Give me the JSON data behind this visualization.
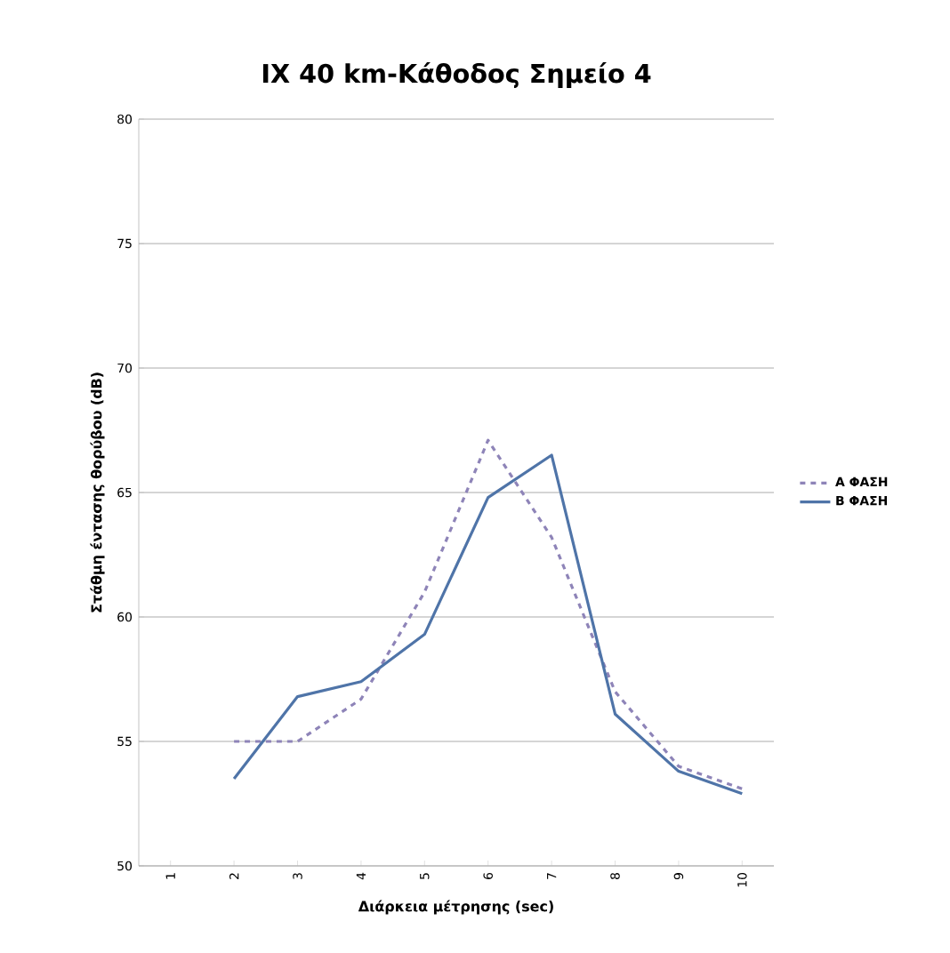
{
  "chart_data": {
    "type": "line",
    "title": "ΙΧ 40 km-Κάθοδος Σημείο 4",
    "xlabel": "Διάρκεια μέτρησης (sec)",
    "ylabel": "Στάθμη έντασης θορύβου (dB)",
    "categories": [
      "1",
      "2",
      "3",
      "4",
      "5",
      "6",
      "7",
      "8",
      "9",
      "10"
    ],
    "series": [
      {
        "name": "Α ΦΑΣΗ",
        "color": "#8e84b8",
        "line_style": "dashed",
        "values": [
          null,
          55.0,
          55.0,
          56.7,
          61.0,
          67.1,
          63.2,
          57.0,
          54.0,
          53.1
        ]
      },
      {
        "name": "Β ΦΑΣΗ",
        "color": "#4f74a8",
        "line_style": "solid",
        "values": [
          null,
          53.5,
          56.8,
          57.4,
          59.3,
          64.8,
          66.5,
          56.1,
          53.8,
          52.9
        ]
      }
    ],
    "ylim": [
      50,
      80
    ],
    "yticks": [
      50,
      55,
      60,
      65,
      70,
      75,
      80
    ],
    "grid": "y",
    "legend": "right",
    "marker": "none"
  }
}
